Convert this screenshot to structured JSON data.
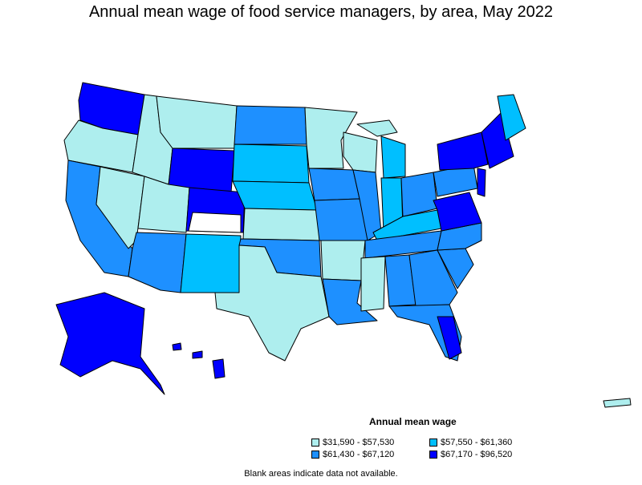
{
  "title": "Annual mean wage of food service managers, by area, May 2022",
  "legend": {
    "title": "Annual mean wage",
    "items": [
      {
        "label": "$31,590 - $57,530",
        "color": "#aeeeee"
      },
      {
        "label": "$57,550 - $61,360",
        "color": "#00bfff"
      },
      {
        "label": "$61,430 - $67,120",
        "color": "#1e90ff"
      },
      {
        "label": "$67,170 - $96,520",
        "color": "#0000ff"
      }
    ]
  },
  "note": "Blank areas indicate data not available.",
  "colors": {
    "tier1": "#aeeeee",
    "tier2": "#00bfff",
    "tier3": "#1e90ff",
    "tier4": "#0000ff",
    "no_data": "#ffffff",
    "border": "#000000"
  }
}
